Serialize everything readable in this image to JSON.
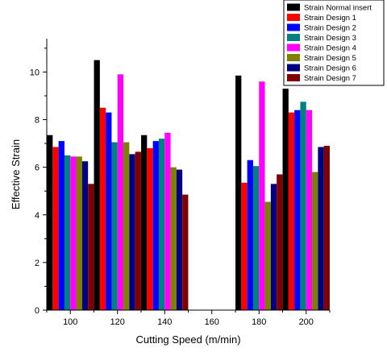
{
  "chart_data": {
    "type": "bar",
    "title": "",
    "xlabel": "Cutting Speed (m/min)",
    "ylabel": "Effective Strain",
    "ylim": [
      0,
      11.4
    ],
    "xlim": [
      90,
      210
    ],
    "x_ticks": [
      100,
      120,
      140,
      160,
      180,
      200
    ],
    "y_ticks": [
      0,
      2,
      4,
      6,
      8,
      10
    ],
    "categories": [
      100,
      120,
      140,
      180,
      200
    ],
    "legend_position": "top-right",
    "grid": false,
    "series": [
      {
        "name": "Strain Normal insert",
        "color": "#000000",
        "values": [
          7.35,
          10.5,
          7.35,
          9.85,
          9.3
        ]
      },
      {
        "name": "Strain Design 1",
        "color": "#ff0000",
        "values": [
          6.85,
          8.5,
          6.8,
          5.35,
          8.3
        ]
      },
      {
        "name": "Strain Design 2",
        "color": "#0000ff",
        "values": [
          7.1,
          8.3,
          7.1,
          6.3,
          8.4
        ]
      },
      {
        "name": "Strain Design 3",
        "color": "#008080",
        "values": [
          6.5,
          7.05,
          7.2,
          6.05,
          8.75
        ]
      },
      {
        "name": "Strain Design 4",
        "color": "#ff00ff",
        "values": [
          6.45,
          9.9,
          7.45,
          9.6,
          8.4
        ]
      },
      {
        "name": "Strain Design 5",
        "color": "#808000",
        "values": [
          6.45,
          7.05,
          6.0,
          4.55,
          5.8
        ]
      },
      {
        "name": "Strain Design 6",
        "color": "#000080",
        "values": [
          6.25,
          6.55,
          5.9,
          5.3,
          6.85
        ]
      },
      {
        "name": "Strain Design 7",
        "color": "#800000",
        "values": [
          5.3,
          6.65,
          4.85,
          5.7,
          6.9
        ]
      }
    ]
  }
}
